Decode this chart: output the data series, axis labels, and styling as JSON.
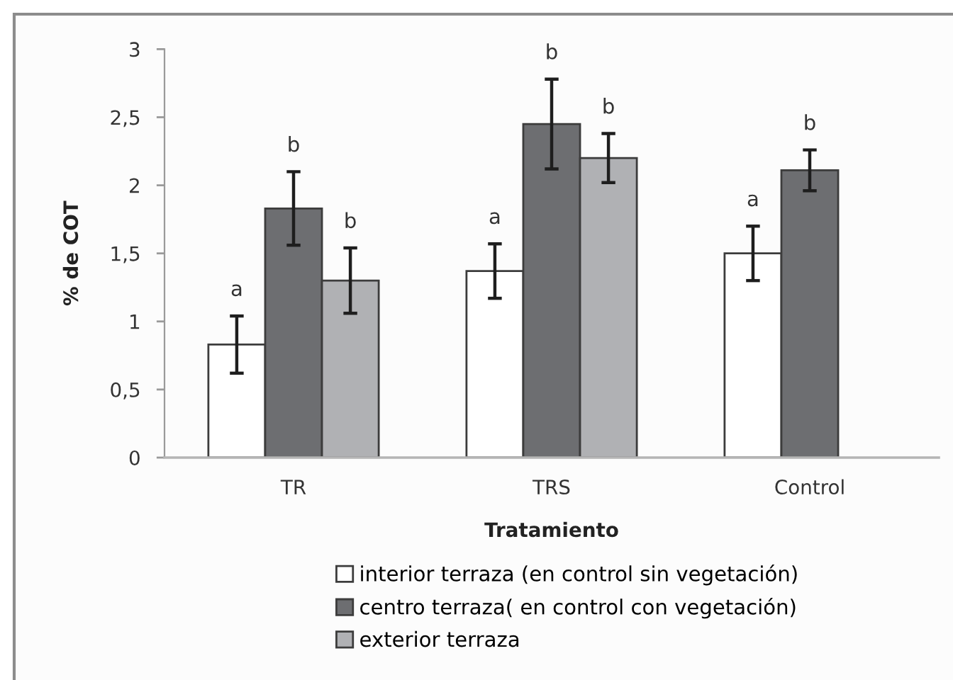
{
  "chart_data": {
    "type": "bar",
    "xlabel": "Tratamiento",
    "ylabel": "% de COT",
    "categories": [
      "TR",
      "TRS",
      "Control"
    ],
    "series": [
      {
        "name": "interior terraza (en control sin vegetación)",
        "color": "#ffffff",
        "values": [
          0.83,
          1.37,
          1.5
        ],
        "errors": [
          0.21,
          0.2,
          0.2
        ],
        "value_labels": [
          "a",
          "a",
          "a"
        ]
      },
      {
        "name": "centro terraza( en control con vegetación)",
        "color": "#6d6e71",
        "values": [
          1.83,
          2.45,
          2.11
        ],
        "errors": [
          0.27,
          0.33,
          0.15
        ],
        "value_labels": [
          "b",
          "b",
          "b"
        ]
      },
      {
        "name": "exterior terraza",
        "color": "#b0b1b4",
        "values": [
          1.3,
          2.2,
          null
        ],
        "errors": [
          0.24,
          0.18,
          null
        ],
        "value_labels": [
          "b",
          "b",
          null
        ]
      }
    ],
    "ylim": [
      0,
      3
    ],
    "yticks": [
      0,
      {
        "value": 0.5,
        "label": "0,5"
      },
      1,
      {
        "value": 1.5,
        "label": "1,5"
      },
      2,
      {
        "value": 2.5,
        "label": "2,5"
      },
      3
    ],
    "grid": false,
    "legend": "bottom"
  }
}
